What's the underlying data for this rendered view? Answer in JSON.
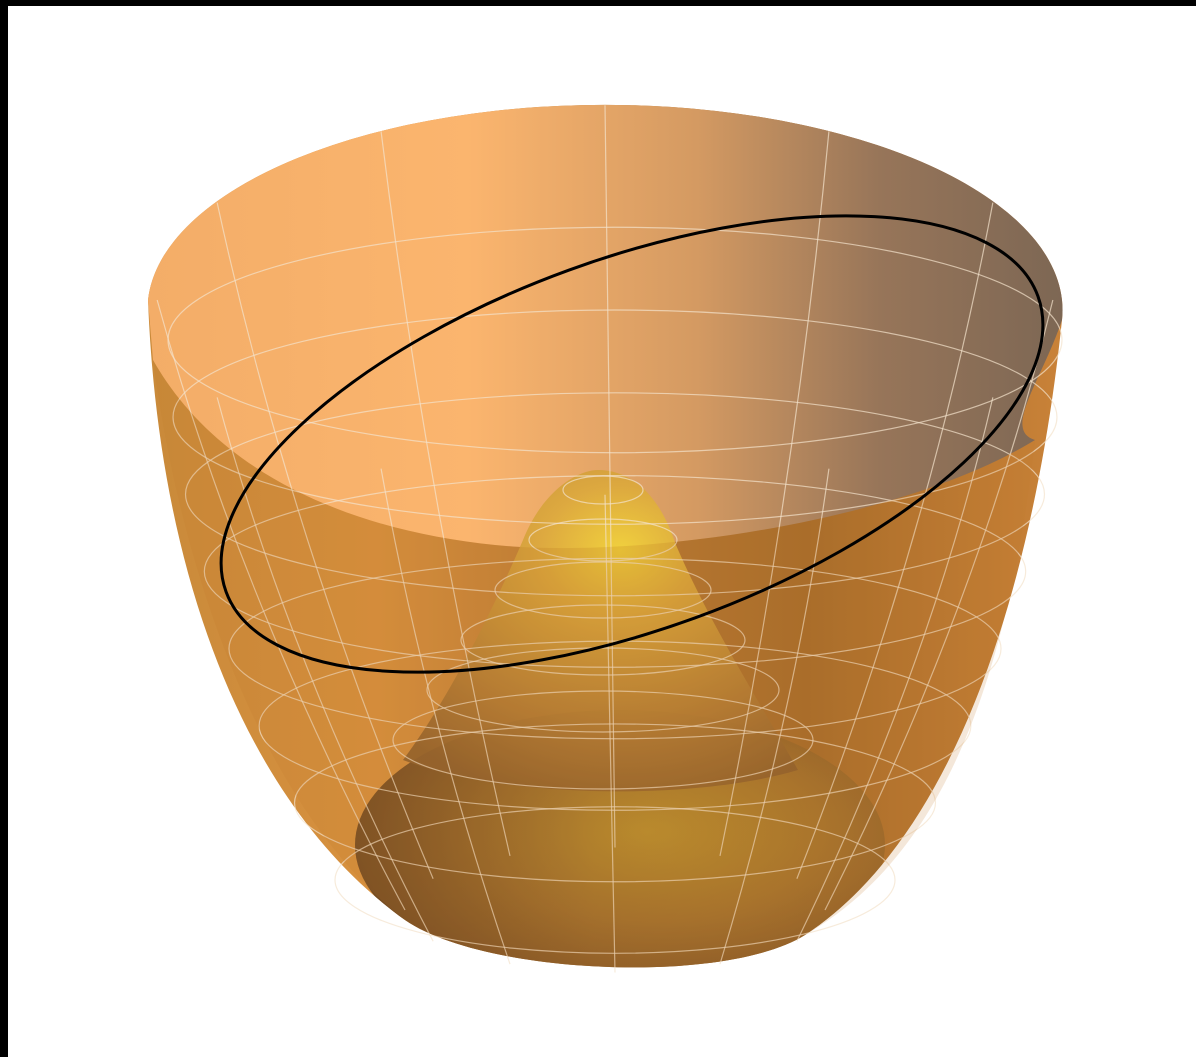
{
  "figure": {
    "type": "3d-surface-plot",
    "subject": "mexican-hat-potential",
    "colors": {
      "background": "#ffffff",
      "frame": "#000000",
      "surface_light": "#fbb56e",
      "surface_mid": "#d8913f",
      "surface_dark": "#6e4a2c",
      "inner_rim_right": "#7d6754",
      "peak_highlight": "#f2d43a",
      "bottom_highlight": "#c8a030",
      "mesh_lines": "#f3e2cc",
      "orbit_curve": "#000000"
    },
    "mesh": {
      "radial_rings": 8,
      "angular_lines": 12
    },
    "features": [
      "outer-bowl",
      "central-hump",
      "tilted-black-orbit-ellipse"
    ]
  }
}
